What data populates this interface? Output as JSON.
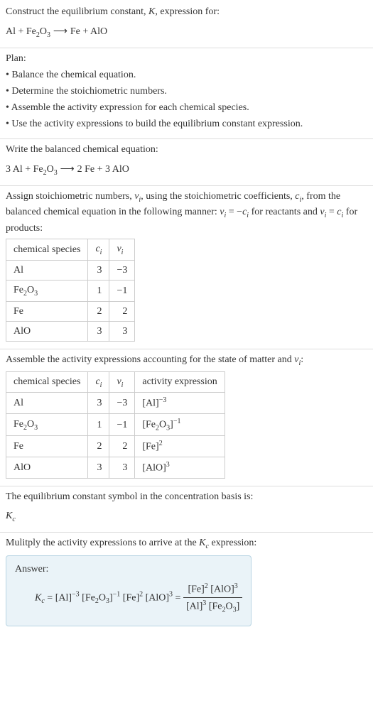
{
  "colors": {
    "text": "#333333",
    "border": "#dddddd",
    "table_border": "#cccccc",
    "answer_bg": "#eaf3f8",
    "answer_border": "#b8d4e3"
  },
  "prompt": {
    "line1_a": "Construct the equilibrium constant, ",
    "line1_K": "K",
    "line1_b": ", expression for:",
    "reaction_lhs_a": "Al + Fe",
    "reaction_lhs_sub": "2",
    "reaction_lhs_b": "O",
    "reaction_lhs_sub2": "3",
    "arrow": " ⟶ ",
    "reaction_rhs": "Fe + AlO"
  },
  "plan": {
    "title": "Plan:",
    "b1": "• Balance the chemical equation.",
    "b2": "• Determine the stoichiometric numbers.",
    "b3": "• Assemble the activity expression for each chemical species.",
    "b4": "• Use the activity expressions to build the equilibrium constant expression."
  },
  "balanced": {
    "intro": "Write the balanced chemical equation:",
    "eq_a": "3 Al + Fe",
    "eq_sub1": "2",
    "eq_b": "O",
    "eq_sub2": "3",
    "arrow": " ⟶ ",
    "eq_rhs": "2 Fe + 3 AlO"
  },
  "stoich_intro": {
    "a": "Assign stoichiometric numbers, ",
    "nu": "ν",
    "i": "i",
    "b": ", using the stoichiometric coefficients, ",
    "c": "c",
    "d": ", from the balanced chemical equation in the following manner: ",
    "nu2": "ν",
    "eq1": " = −",
    "c2": "c",
    "e": " for reactants and ",
    "nu3": "ν",
    "eq2": " = ",
    "c3": "c",
    "f": " for products:"
  },
  "table1": {
    "h1": "chemical species",
    "h2": "c",
    "h2sub": "i",
    "h3": "ν",
    "h3sub": "i",
    "rows": [
      {
        "sp_a": "Al",
        "sp_sub1": "",
        "sp_b": "",
        "sp_sub2": "",
        "c": "3",
        "nu": "−3"
      },
      {
        "sp_a": "Fe",
        "sp_sub1": "2",
        "sp_b": "O",
        "sp_sub2": "3",
        "c": "1",
        "nu": "−1"
      },
      {
        "sp_a": "Fe",
        "sp_sub1": "",
        "sp_b": "",
        "sp_sub2": "",
        "c": "2",
        "nu": "2"
      },
      {
        "sp_a": "AlO",
        "sp_sub1": "",
        "sp_b": "",
        "sp_sub2": "",
        "c": "3",
        "nu": "3"
      }
    ]
  },
  "activity_intro": {
    "a": "Assemble the activity expressions accounting for the state of matter and ",
    "nu": "ν",
    "i": "i",
    "b": ":"
  },
  "table2": {
    "h1": "chemical species",
    "h2": "c",
    "h2sub": "i",
    "h3": "ν",
    "h3sub": "i",
    "h4": "activity expression",
    "rows": [
      {
        "sp_a": "Al",
        "sp_sub1": "",
        "sp_b": "",
        "sp_sub2": "",
        "c": "3",
        "nu": "−3",
        "ae_a": "[Al]",
        "ae_sup": "−3",
        "ae_b": "",
        "ae_sub1": "",
        "ae_c": "",
        "ae_sub2": ""
      },
      {
        "sp_a": "Fe",
        "sp_sub1": "2",
        "sp_b": "O",
        "sp_sub2": "3",
        "c": "1",
        "nu": "−1",
        "ae_a": "[Fe",
        "ae_sup": "−1",
        "ae_b": "O",
        "ae_sub1": "2",
        "ae_c": "]",
        "ae_sub2": "3"
      },
      {
        "sp_a": "Fe",
        "sp_sub1": "",
        "sp_b": "",
        "sp_sub2": "",
        "c": "2",
        "nu": "2",
        "ae_a": "[Fe]",
        "ae_sup": "2",
        "ae_b": "",
        "ae_sub1": "",
        "ae_c": "",
        "ae_sub2": ""
      },
      {
        "sp_a": "AlO",
        "sp_sub1": "",
        "sp_b": "",
        "sp_sub2": "",
        "c": "3",
        "nu": "3",
        "ae_a": "[AlO]",
        "ae_sup": "3",
        "ae_b": "",
        "ae_sub1": "",
        "ae_c": "",
        "ae_sub2": ""
      }
    ]
  },
  "basis": {
    "line1": "The equilibrium constant symbol in the concentration basis is:",
    "K": "K",
    "c": "c"
  },
  "mult": {
    "a": "Mulitply the activity expressions to arrive at the ",
    "K": "K",
    "c": "c",
    "b": " expression:"
  },
  "answer": {
    "label": "Answer:",
    "K": "K",
    "c": "c",
    "eq": " = [Al]",
    "s1": "−3",
    "p2a": " [Fe",
    "p2s1": "2",
    "p2b": "O",
    "p2s2": "3",
    "p2c": "]",
    "s2": "−1",
    "p3": " [Fe]",
    "s3": "2",
    "p4": " [AlO]",
    "s4": "3",
    "eq2": " = ",
    "num_a": "[Fe]",
    "num_s1": "2",
    "num_b": " [AlO]",
    "num_s2": "3",
    "den_a": "[Al]",
    "den_s1": "3",
    "den_b": " [Fe",
    "den_s2": "2",
    "den_c": "O",
    "den_s3": "3",
    "den_d": "]"
  }
}
